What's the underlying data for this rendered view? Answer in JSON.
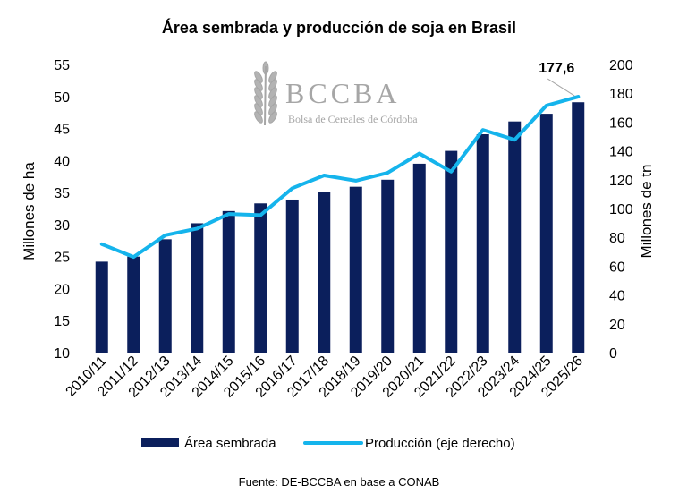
{
  "colors": {
    "bars": "#0b1f5c",
    "line": "#15b4ec",
    "logo": "#a6a6a6"
  },
  "logo": {
    "name": "BCCBA",
    "subtitle": "Bolsa de Cereales de Córdoba",
    "icon": "wheat-icon"
  },
  "source": "Fuente: DE-BCCBA en base a CONAB",
  "chart_data": {
    "type": "bar",
    "title": "Área sembrada y producción de soja en Brasil",
    "categories": [
      "2010/11",
      "2011/12",
      "2012/13",
      "2013/14",
      "2014/15",
      "2015/16",
      "2016/17",
      "2017/18",
      "2018/19",
      "2019/20",
      "2020/21",
      "2021/22",
      "2022/23",
      "2023/24",
      "2024/25",
      "2025/26"
    ],
    "y_left": {
      "label": "Millones de ha",
      "min": 10,
      "max": 55,
      "ticks": [
        "10",
        "15",
        "20",
        "25",
        "30",
        "35",
        "40",
        "45",
        "50",
        "55"
      ]
    },
    "y_right": {
      "label": "Millones de tn",
      "min": 0,
      "max": 200,
      "ticks": [
        "0",
        "20",
        "40",
        "60",
        "80",
        "100",
        "120",
        "140",
        "160",
        "180",
        "200"
      ]
    },
    "series": [
      {
        "name": "Área sembrada",
        "type": "bar",
        "axis": "left",
        "values": [
          24.2,
          25.0,
          27.7,
          30.2,
          32.1,
          33.3,
          33.9,
          35.1,
          35.9,
          37.0,
          39.5,
          41.5,
          44.1,
          46.1,
          47.3,
          49.1
        ]
      },
      {
        "name": "Producción (eje derecho)",
        "type": "line",
        "axis": "right",
        "values": [
          75.3,
          66.4,
          81.5,
          86.1,
          96.2,
          95.4,
          114.1,
          123.0,
          119.3,
          124.8,
          138.2,
          125.6,
          154.6,
          147.7,
          171.5,
          177.6
        ]
      }
    ],
    "annotation": {
      "text": "177,6",
      "category": "2025/26"
    },
    "legend_position": "bottom",
    "grid": false
  }
}
